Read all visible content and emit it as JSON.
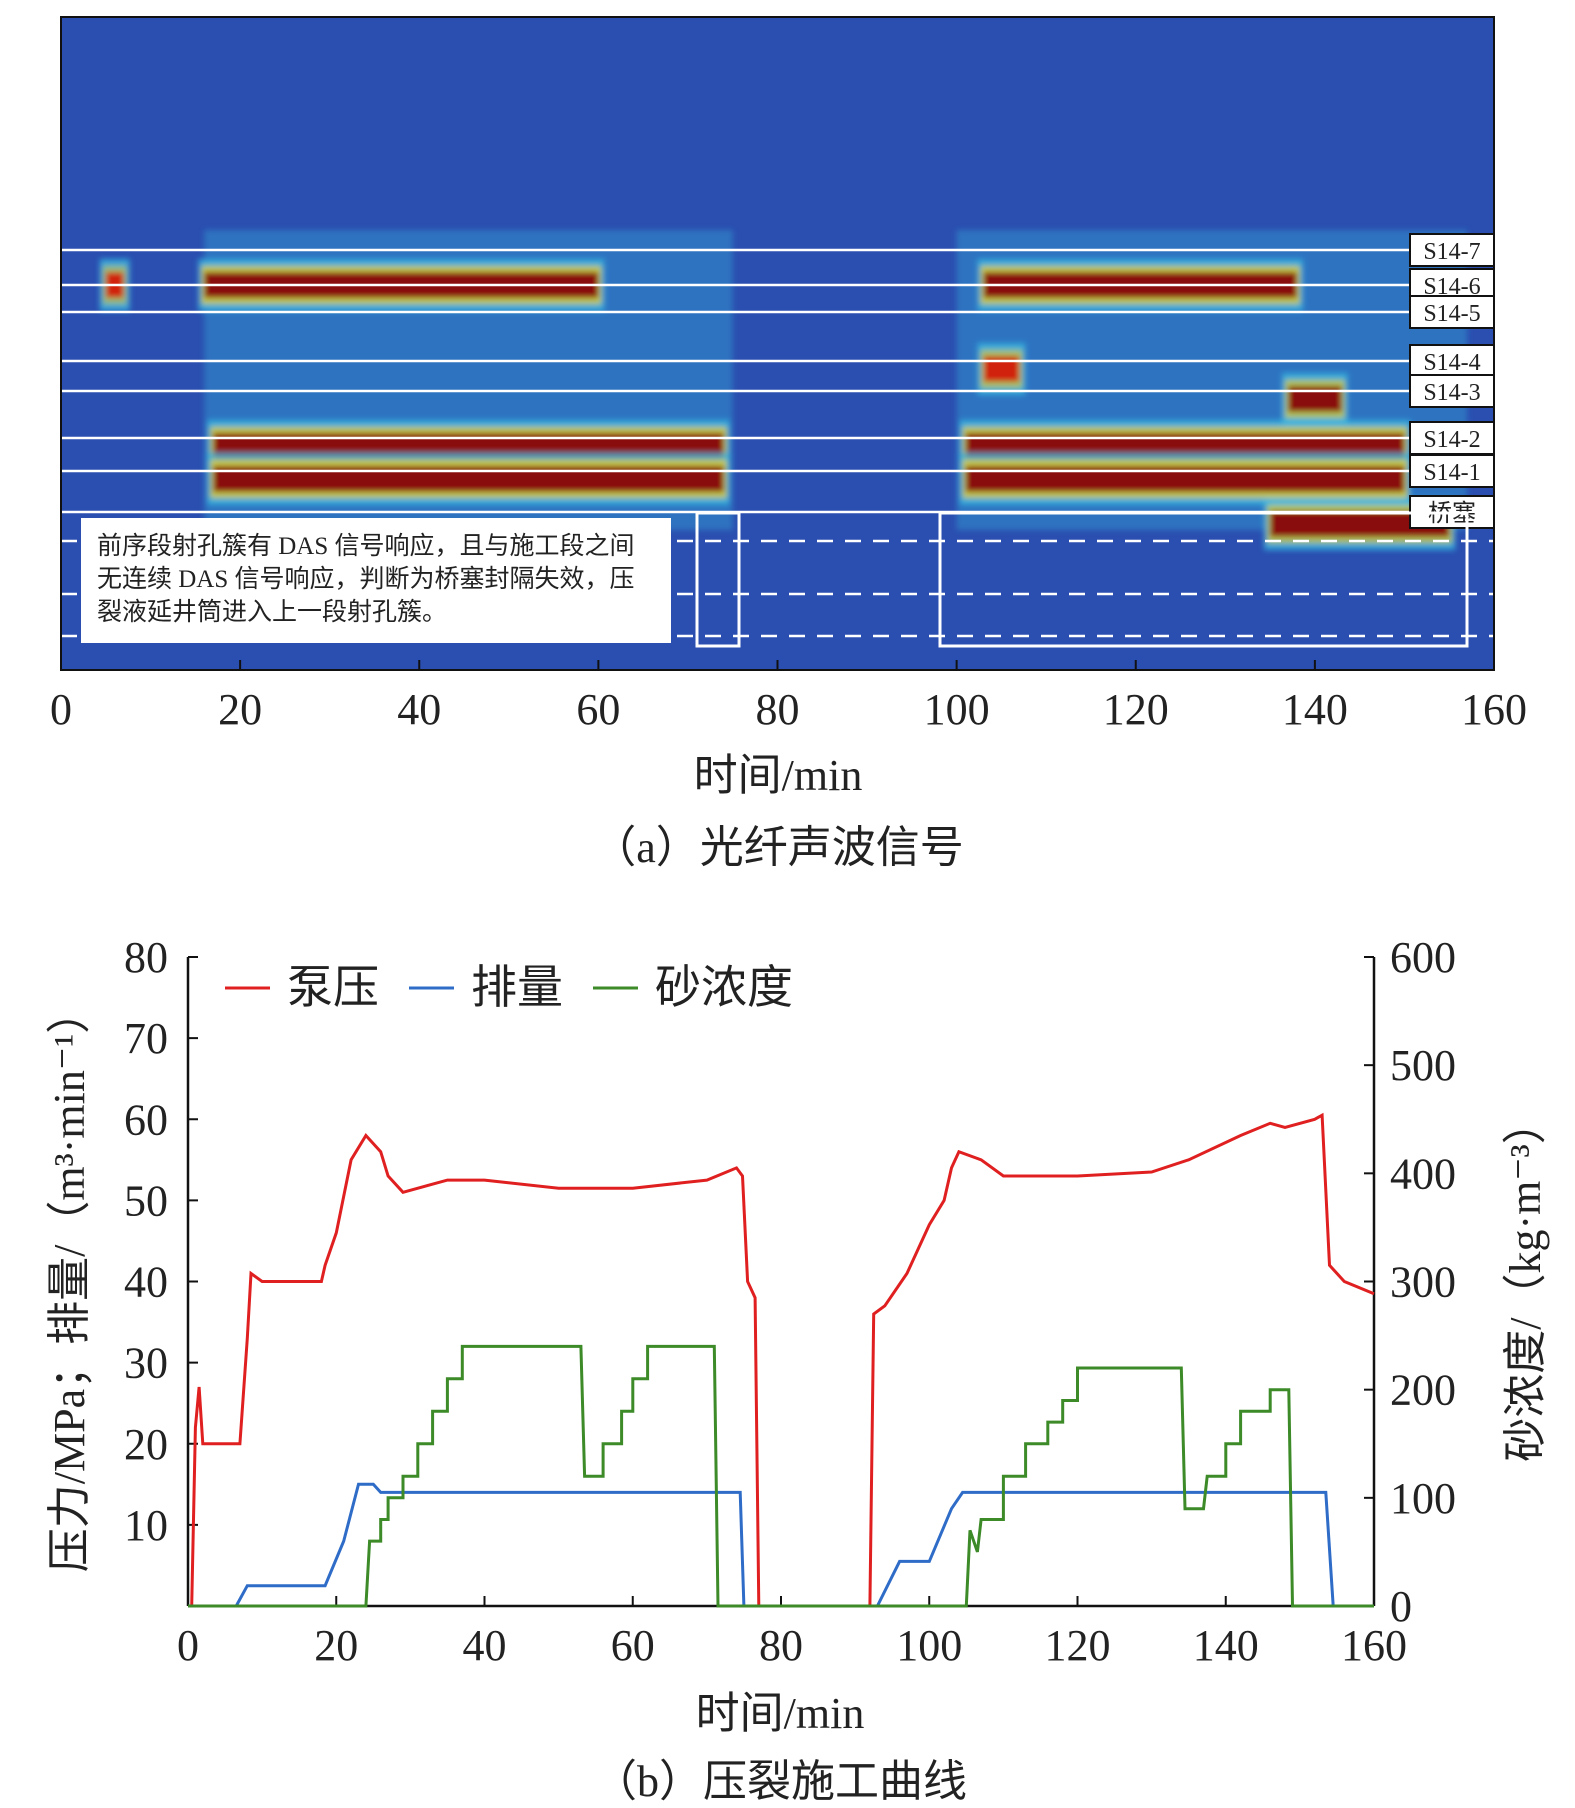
{
  "panel_a": {
    "annotation": "前序段射孔簇有 DAS 信号响应，且与施工段之间无连续 DAS 信号响应，判断为桥塞封隔失效，压裂液延井筒进入上一段射孔簇。",
    "caption": "（a）光纤声波信号"
  },
  "panel_b": {
    "caption": "（b）压裂施工曲线"
  },
  "colors": {
    "background": "#2b4fb0",
    "cyan": "#35b8e0",
    "yellow": "#e8d020",
    "red": "#d02010",
    "dark": "#8a0a08",
    "pressure": "#e02020",
    "rate": "#2e6cc8",
    "sand": "#3c8a28"
  },
  "chart_data": [
    {
      "type": "heatmap",
      "title": "光纤声波信号",
      "xlabel": "时间/min",
      "xlim": [
        0,
        160
      ],
      "xticks": [
        "0",
        "20",
        "40",
        "60",
        "80",
        "100",
        "120",
        "140",
        "160"
      ],
      "stage_labels": [
        "S14-7",
        "S14-6",
        "S14-5",
        "S14-4",
        "S14-3",
        "S14-2",
        "S14-1",
        "桥塞"
      ],
      "hot_zones": [
        {
          "stage": "S14-6",
          "t": [
            16,
            60
          ],
          "level": 1.0
        },
        {
          "stage": "S14-6",
          "t": [
            5,
            7
          ],
          "level": 0.7
        },
        {
          "stage": "S14-2",
          "t": [
            17,
            74
          ],
          "level": 1.0
        },
        {
          "stage": "S14-1",
          "t": [
            17,
            74
          ],
          "level": 1.0
        },
        {
          "stage": "S14-6",
          "t": [
            103,
            138
          ],
          "level": 1.0
        },
        {
          "stage": "S14-4",
          "t": [
            103,
            107
          ],
          "level": 0.8
        },
        {
          "stage": "S14-3",
          "t": [
            137,
            143
          ],
          "level": 0.9
        },
        {
          "stage": "S14-2",
          "t": [
            101,
            150
          ],
          "level": 1.0
        },
        {
          "stage": "S14-1",
          "t": [
            101,
            150
          ],
          "level": 1.0
        },
        {
          "stage": "桥塞",
          "t": [
            135,
            155
          ],
          "level": 0.9
        }
      ]
    },
    {
      "type": "line",
      "title": "压裂施工曲线",
      "xlabel": "时间/min",
      "ylabel": "压力/MPa；排量/（m³·min⁻¹）",
      "y2label": "砂浓度/（kg·m⁻³）",
      "xlim": [
        0,
        160
      ],
      "ylim": [
        0,
        80
      ],
      "y2lim": [
        0,
        600
      ],
      "xticks": [
        "0",
        "20",
        "40",
        "60",
        "80",
        "100",
        "120",
        "140",
        "160"
      ],
      "yticks": [
        "10",
        "20",
        "30",
        "40",
        "50",
        "60",
        "70",
        "80"
      ],
      "y2ticks": [
        "0",
        "100",
        "200",
        "300",
        "400",
        "500",
        "600"
      ],
      "legend_position": "top-left",
      "series": [
        {
          "name": "泵压",
          "axis": "left",
          "points": [
            [
              0.5,
              0
            ],
            [
              1,
              22
            ],
            [
              1.5,
              27
            ],
            [
              2,
              20
            ],
            [
              7,
              20
            ],
            [
              8,
              33
            ],
            [
              8.5,
              41
            ],
            [
              10,
              40
            ],
            [
              18,
              40
            ],
            [
              18.5,
              42
            ],
            [
              20,
              46
            ],
            [
              22,
              55
            ],
            [
              24,
              58
            ],
            [
              26,
              56
            ],
            [
              27,
              53
            ],
            [
              29,
              51
            ],
            [
              35,
              52.5
            ],
            [
              40,
              52.5
            ],
            [
              50,
              51.5
            ],
            [
              60,
              51.5
            ],
            [
              70,
              52.5
            ],
            [
              74,
              54
            ],
            [
              74.8,
              53
            ],
            [
              75.5,
              40
            ],
            [
              76.5,
              38
            ],
            [
              77,
              0
            ],
            [
              92,
              0
            ],
            [
              92.5,
              36
            ],
            [
              94,
              37
            ],
            [
              97,
              41
            ],
            [
              100,
              47
            ],
            [
              102,
              50
            ],
            [
              103,
              54
            ],
            [
              104,
              56
            ],
            [
              107,
              55
            ],
            [
              110,
              53
            ],
            [
              120,
              53
            ],
            [
              130,
              53.5
            ],
            [
              135,
              55
            ],
            [
              142,
              58
            ],
            [
              146,
              59.5
            ],
            [
              148,
              59
            ],
            [
              152,
              60
            ],
            [
              153,
              60.5
            ],
            [
              154,
              42
            ],
            [
              156,
              40
            ],
            [
              160,
              38.5
            ]
          ]
        },
        {
          "name": "排量",
          "axis": "left",
          "points": [
            [
              0,
              0
            ],
            [
              6.5,
              0
            ],
            [
              8,
              2.5
            ],
            [
              18.5,
              2.5
            ],
            [
              21,
              8
            ],
            [
              23,
              15
            ],
            [
              25,
              15
            ],
            [
              26,
              14
            ],
            [
              74.5,
              14
            ],
            [
              75,
              0
            ],
            [
              93,
              0
            ],
            [
              96,
              5.5
            ],
            [
              100,
              5.5
            ],
            [
              103,
              12
            ],
            [
              104.5,
              14
            ],
            [
              153.5,
              14
            ],
            [
              154.5,
              0
            ],
            [
              160,
              0
            ]
          ]
        },
        {
          "name": "砂浓度",
          "axis": "right",
          "points": [
            [
              0,
              0
            ],
            [
              24,
              0
            ],
            [
              24.5,
              60
            ],
            [
              26,
              60
            ],
            [
              26,
              80
            ],
            [
              27,
              80
            ],
            [
              27,
              100
            ],
            [
              29,
              100
            ],
            [
              29,
              120
            ],
            [
              31,
              120
            ],
            [
              31,
              150
            ],
            [
              33,
              150
            ],
            [
              33,
              180
            ],
            [
              35,
              180
            ],
            [
              35,
              210
            ],
            [
              37,
              210
            ],
            [
              37,
              240
            ],
            [
              53,
              240
            ],
            [
              53.5,
              120
            ],
            [
              56,
              120
            ],
            [
              56,
              150
            ],
            [
              58.5,
              150
            ],
            [
              58.5,
              180
            ],
            [
              60,
              180
            ],
            [
              60,
              210
            ],
            [
              62,
              210
            ],
            [
              62,
              240
            ],
            [
              71,
              240
            ],
            [
              71.5,
              0
            ],
            [
              105,
              0
            ],
            [
              105.5,
              70
            ],
            [
              106.5,
              50
            ],
            [
              107,
              80
            ],
            [
              110,
              80
            ],
            [
              110,
              120
            ],
            [
              113,
              120
            ],
            [
              113,
              150
            ],
            [
              116,
              150
            ],
            [
              116,
              170
            ],
            [
              118,
              170
            ],
            [
              118,
              190
            ],
            [
              120,
              190
            ],
            [
              120,
              220
            ],
            [
              134,
              220
            ],
            [
              134.5,
              90
            ],
            [
              137,
              90
            ],
            [
              137.5,
              120
            ],
            [
              140,
              120
            ],
            [
              140,
              150
            ],
            [
              142,
              150
            ],
            [
              142,
              180
            ],
            [
              146,
              180
            ],
            [
              146,
              200
            ],
            [
              148.5,
              200
            ],
            [
              149,
              0
            ],
            [
              160,
              0
            ]
          ]
        }
      ]
    }
  ]
}
